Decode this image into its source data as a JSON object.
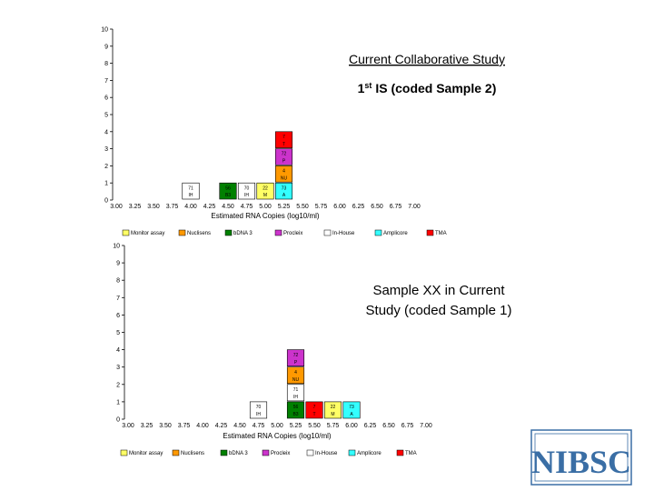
{
  "colors": {
    "Monitor assay": "#ffff66",
    "Nuclisens": "#ff9900",
    "bDNA 3": "#008000",
    "Procleix": "#cc33cc",
    "In-House": "#ffffff",
    "Amplicore": "#33ffff",
    "TMA": "#ff0000",
    "logo": "#3a6ea5"
  },
  "logo_text": "NIBSC",
  "chart_data": [
    {
      "type": "histogram",
      "title": "Current Collaborative Study",
      "subtitle_main": "1",
      "subtitle_sup": "st",
      "subtitle_rest": " IS (coded Sample 2)",
      "xlabel": "Estimated RNA Copies (log10/ml)",
      "ylabel": "",
      "xlim": [
        3.0,
        7.0
      ],
      "ylim": [
        0,
        10
      ],
      "x_ticks": [
        "3.00",
        "3.25",
        "3.50",
        "3.75",
        "4.00",
        "4.25",
        "4.50",
        "4.75",
        "5.00",
        "5.25",
        "5.50",
        "5.75",
        "6.00",
        "6.25",
        "6.50",
        "6.75",
        "7.00"
      ],
      "y_ticks": [
        "0",
        "1",
        "2",
        "3",
        "4",
        "5",
        "6",
        "7",
        "8",
        "9",
        "10"
      ],
      "legend": [
        "Monitor assay",
        "Nuclisens",
        "bDNA 3",
        "Procleix",
        "In-House",
        "Amplicore",
        "TMA"
      ],
      "boxes": [
        {
          "x": 4.0,
          "level": 0,
          "label": "71\nIH",
          "method": "In-House"
        },
        {
          "x": 4.5,
          "level": 0,
          "label": "56\nB3",
          "method": "bDNA 3"
        },
        {
          "x": 4.75,
          "level": 0,
          "label": "70\nIH",
          "method": "In-House"
        },
        {
          "x": 5.0,
          "level": 0,
          "label": "22\nM",
          "method": "Monitor assay"
        },
        {
          "x": 5.25,
          "level": 0,
          "label": "73\nA",
          "method": "Amplicore"
        },
        {
          "x": 5.25,
          "level": 1,
          "label": "4\nNU",
          "method": "Nuclisens"
        },
        {
          "x": 5.25,
          "level": 2,
          "label": "72\nP",
          "method": "Procleix"
        },
        {
          "x": 5.25,
          "level": 3,
          "label": "7\nT",
          "method": "TMA"
        }
      ]
    },
    {
      "type": "histogram",
      "title": "Sample XX in Current",
      "title_line2": "Study (coded Sample 1)",
      "xlabel": "Estimated RNA Copies (log10/ml)",
      "ylabel": "",
      "xlim": [
        3.0,
        7.0
      ],
      "ylim": [
        0,
        10
      ],
      "x_ticks": [
        "3.00",
        "3.25",
        "3.50",
        "3.75",
        "4.00",
        "4.25",
        "4.50",
        "4.75",
        "5.00",
        "5.25",
        "5.50",
        "5.75",
        "6.00",
        "6.25",
        "6.50",
        "6.75",
        "7.00"
      ],
      "y_ticks": [
        "0",
        "1",
        "2",
        "3",
        "4",
        "5",
        "6",
        "7",
        "8",
        "9",
        "10"
      ],
      "legend": [
        "Monitor assay",
        "Nuclisens",
        "bDNA 3",
        "Procleix",
        "In-House",
        "Amplicore",
        "TMA"
      ],
      "boxes": [
        {
          "x": 4.75,
          "level": 0,
          "label": "70\nIH",
          "method": "In-House"
        },
        {
          "x": 5.25,
          "level": 0,
          "label": "56\nB3",
          "method": "bDNA 3"
        },
        {
          "x": 5.25,
          "level": 1,
          "label": "71\nIH",
          "method": "In-House"
        },
        {
          "x": 5.25,
          "level": 2,
          "label": "4\nNU",
          "method": "Nuclisens"
        },
        {
          "x": 5.25,
          "level": 3,
          "label": "72\nP",
          "method": "Procleix"
        },
        {
          "x": 5.5,
          "level": 0,
          "label": "7\nT",
          "method": "TMA"
        },
        {
          "x": 5.75,
          "level": 0,
          "label": "22\nM",
          "method": "Monitor assay"
        },
        {
          "x": 6.0,
          "level": 0,
          "label": "73\nA",
          "method": "Amplicore"
        }
      ]
    }
  ]
}
